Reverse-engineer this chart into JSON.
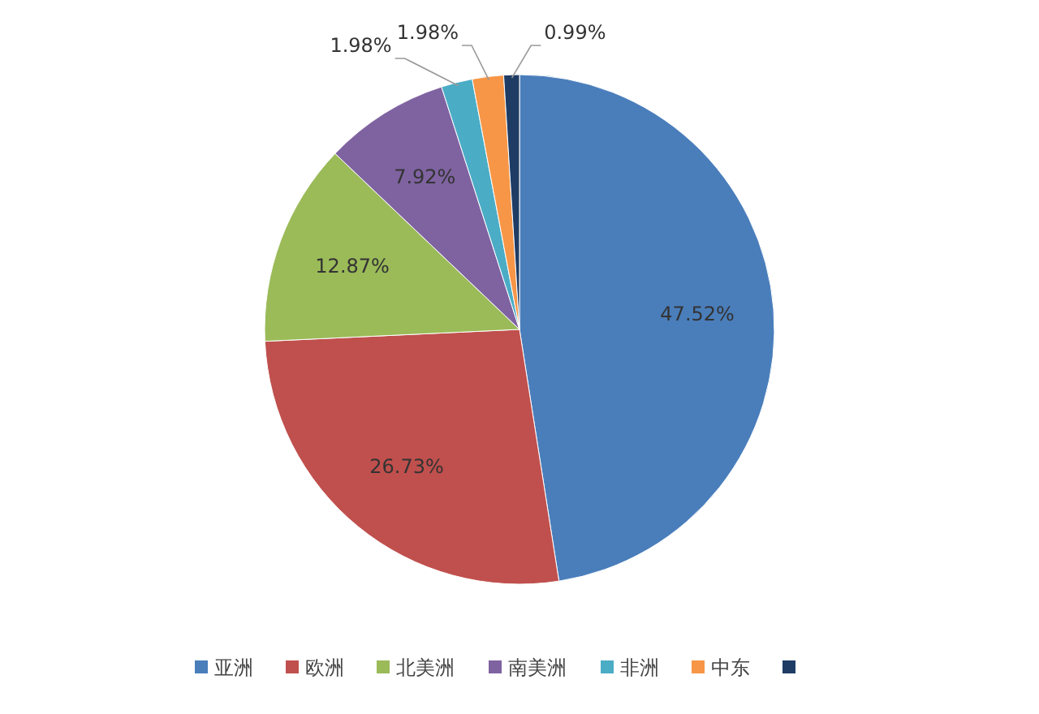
{
  "chart_data": {
    "type": "pie",
    "categories": [
      "亚洲",
      "欧洲",
      "北美洲",
      "南美洲",
      "非洲",
      "中东",
      null
    ],
    "values": [
      47.52,
      26.73,
      12.87,
      7.92,
      1.98,
      1.98,
      0.99
    ],
    "value_labels": [
      "47.52%",
      "26.73%",
      "12.87%",
      "7.92%",
      "1.98%",
      "1.98%",
      "0.99%"
    ],
    "colors": [
      "#4a7ebb",
      "#c0504d",
      "#9bbb59",
      "#7f63a1",
      "#4bacc6",
      "#f79646",
      "#1f3c64"
    ],
    "legend": "bottom"
  }
}
